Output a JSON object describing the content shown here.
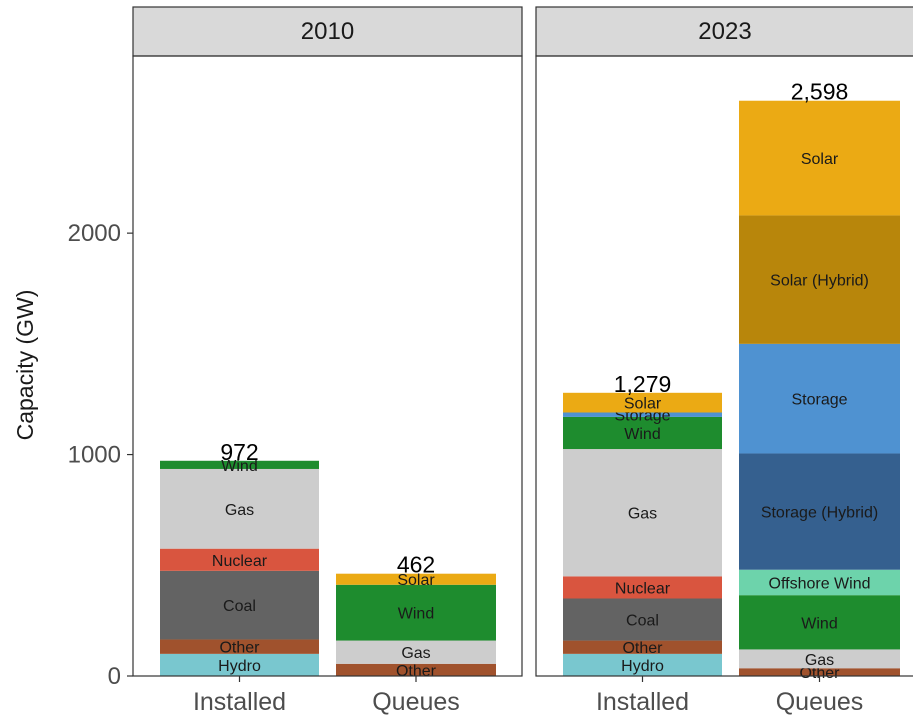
{
  "chart_data": {
    "type": "bar",
    "stacked": true,
    "ylabel": "Capacity (GW)",
    "ylim": [
      0,
      2800
    ],
    "yticks": [
      0,
      1000,
      2000
    ],
    "grid": false,
    "panels": [
      {
        "strip": "2010",
        "bars": [
          {
            "category": "Installed",
            "total_label": "972",
            "segments": [
              {
                "name": "Hydro",
                "value": 100,
                "color": "#79C7CF"
              },
              {
                "name": "Other",
                "value": 65,
                "color": "#A0522D"
              },
              {
                "name": "Coal",
                "value": 310,
                "color": "#636363"
              },
              {
                "name": "Nuclear",
                "value": 100,
                "color": "#D9553F"
              },
              {
                "name": "Gas",
                "value": 360,
                "color": "#CDCDCD"
              },
              {
                "name": "Wind",
                "value": 37,
                "color": "#1E8C2E"
              }
            ]
          },
          {
            "category": "Queues",
            "total_label": "462",
            "segments": [
              {
                "name": "Other",
                "value": 55,
                "color": "#A0522D"
              },
              {
                "name": "Gas",
                "value": 105,
                "color": "#CDCDCD"
              },
              {
                "name": "Wind",
                "value": 252,
                "color": "#1E8C2E"
              },
              {
                "name": "Solar",
                "value": 50,
                "color": "#EBAA14"
              }
            ]
          }
        ]
      },
      {
        "strip": "2023",
        "bars": [
          {
            "category": "Installed",
            "total_label": "1,279",
            "segments": [
              {
                "name": "Hydro",
                "value": 100,
                "color": "#79C7CF"
              },
              {
                "name": "Other",
                "value": 60,
                "color": "#A0522D"
              },
              {
                "name": "Coal",
                "value": 190,
                "color": "#636363"
              },
              {
                "name": "Nuclear",
                "value": 100,
                "color": "#D9553F"
              },
              {
                "name": "Gas",
                "value": 575,
                "color": "#CDCDCD"
              },
              {
                "name": "Wind",
                "value": 145,
                "color": "#1E8C2E"
              },
              {
                "name": "Storage",
                "value": 20,
                "color": "#4F92D1"
              },
              {
                "name": "Solar",
                "value": 89,
                "color": "#EBAA14"
              }
            ]
          },
          {
            "category": "Queues",
            "total_label": "2,598",
            "segments": [
              {
                "name": "Other",
                "value": 35,
                "color": "#A0522D"
              },
              {
                "name": "Gas",
                "value": 85,
                "color": "#CDCDCD"
              },
              {
                "name": "Wind",
                "value": 245,
                "color": "#1E8C2E"
              },
              {
                "name": "Offshore Wind",
                "value": 115,
                "color": "#6DD3AB"
              },
              {
                "name": "Storage (Hybrid)",
                "value": 525,
                "color": "#35608F"
              },
              {
                "name": "Storage",
                "value": 495,
                "color": "#4F92D1"
              },
              {
                "name": "Solar (Hybrid)",
                "value": 580,
                "color": "#B8860B"
              },
              {
                "name": "Solar",
                "value": 518,
                "color": "#EBAA14"
              }
            ]
          }
        ]
      }
    ]
  }
}
